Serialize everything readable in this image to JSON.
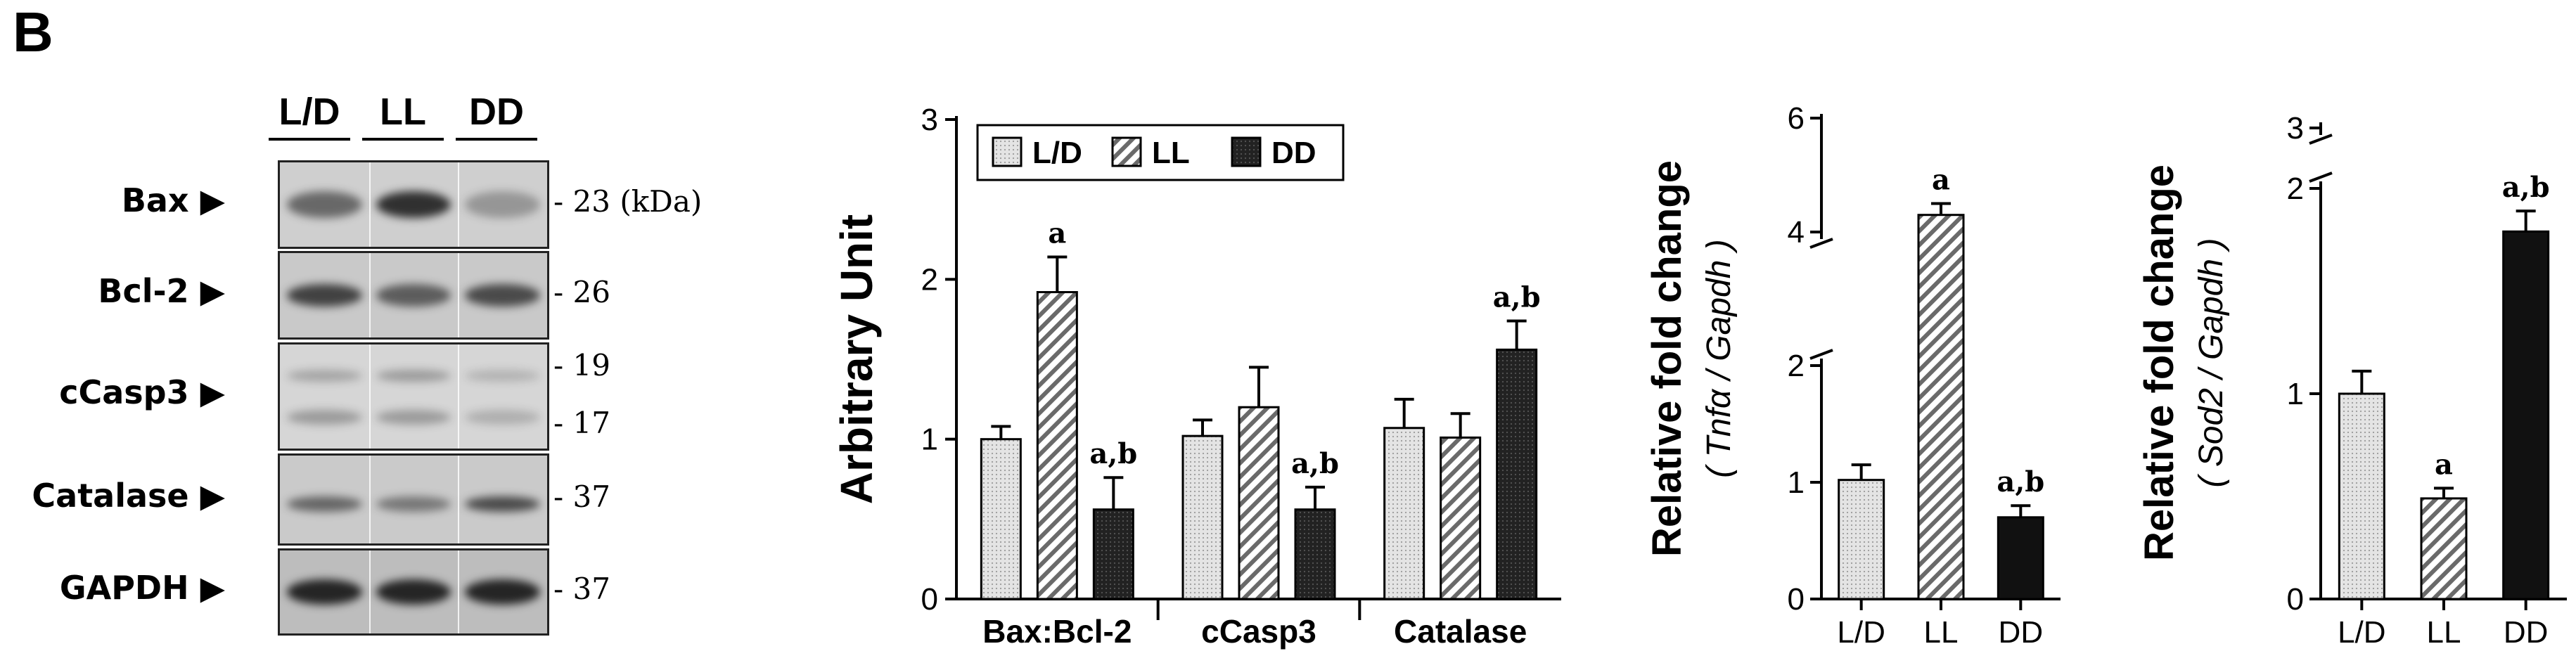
{
  "panel_label": "B",
  "western_blot": {
    "lanes": [
      "L/D",
      "LL",
      "DD"
    ],
    "rows": [
      {
        "label": "Bax",
        "markers": [
          "23 (kDa)"
        ]
      },
      {
        "label": "Bcl-2",
        "markers": [
          "26"
        ]
      },
      {
        "label": "cCasp3",
        "markers": [
          "19",
          "17"
        ]
      },
      {
        "label": "Catalase",
        "markers": [
          "37"
        ]
      },
      {
        "label": "GAPDH",
        "markers": [
          "37"
        ]
      }
    ]
  },
  "colors": {
    "ld": "#d9d9d9",
    "ll": "#bfbfbf",
    "dd": "#1a1a1a",
    "axis": "#000000"
  },
  "chart_data": [
    {
      "type": "bar",
      "ylabel": "Arbitrary Unit",
      "ylim": [
        0,
        3
      ],
      "yticks": [
        "0",
        "1",
        "2",
        "3"
      ],
      "categories": [
        "Bax:Bcl-2",
        "cCasp3",
        "Catalase"
      ],
      "legend": {
        "placement": "top-left",
        "entries": [
          "L/D",
          "LL",
          "DD"
        ]
      },
      "series": [
        {
          "name": "L/D",
          "values": [
            1.0,
            1.02,
            1.07
          ],
          "errors": [
            0.08,
            0.1,
            0.18
          ]
        },
        {
          "name": "LL",
          "values": [
            1.92,
            1.2,
            1.01
          ],
          "errors": [
            0.22,
            0.25,
            0.15
          ]
        },
        {
          "name": "DD",
          "values": [
            0.56,
            0.56,
            1.56
          ],
          "errors": [
            0.2,
            0.14,
            0.18
          ]
        }
      ],
      "annotations": [
        {
          "category": "Bax:Bcl-2",
          "series": "LL",
          "text": "a"
        },
        {
          "category": "Bax:Bcl-2",
          "series": "DD",
          "text": "a,b"
        },
        {
          "category": "cCasp3",
          "series": "DD",
          "text": "a,b"
        },
        {
          "category": "Catalase",
          "series": "DD",
          "text": "a,b"
        }
      ]
    },
    {
      "type": "bar",
      "ylabel": "Relative fold change",
      "ylabel_sub": "( Tnfα / Gapdh )",
      "axis_break": true,
      "yticks": [
        "0",
        "1",
        "2",
        "4",
        "6"
      ],
      "categories": [
        "L/D",
        "LL",
        "DD"
      ],
      "values": [
        1.02,
        4.3,
        0.7
      ],
      "errors": [
        0.13,
        0.2,
        0.1
      ],
      "annotations": [
        "",
        "a",
        "a,b"
      ]
    },
    {
      "type": "bar",
      "ylabel": "Relative fold change",
      "ylabel_sub": "( Sod2 / Gapdh )",
      "axis_break": true,
      "yticks": [
        "0",
        "1",
        "2",
        "3"
      ],
      "categories": [
        "L/D",
        "LL",
        "DD"
      ],
      "values": [
        1.0,
        0.49,
        1.79
      ],
      "errors": [
        0.11,
        0.05,
        0.1
      ],
      "annotations": [
        "",
        "a",
        "a,b"
      ]
    }
  ]
}
